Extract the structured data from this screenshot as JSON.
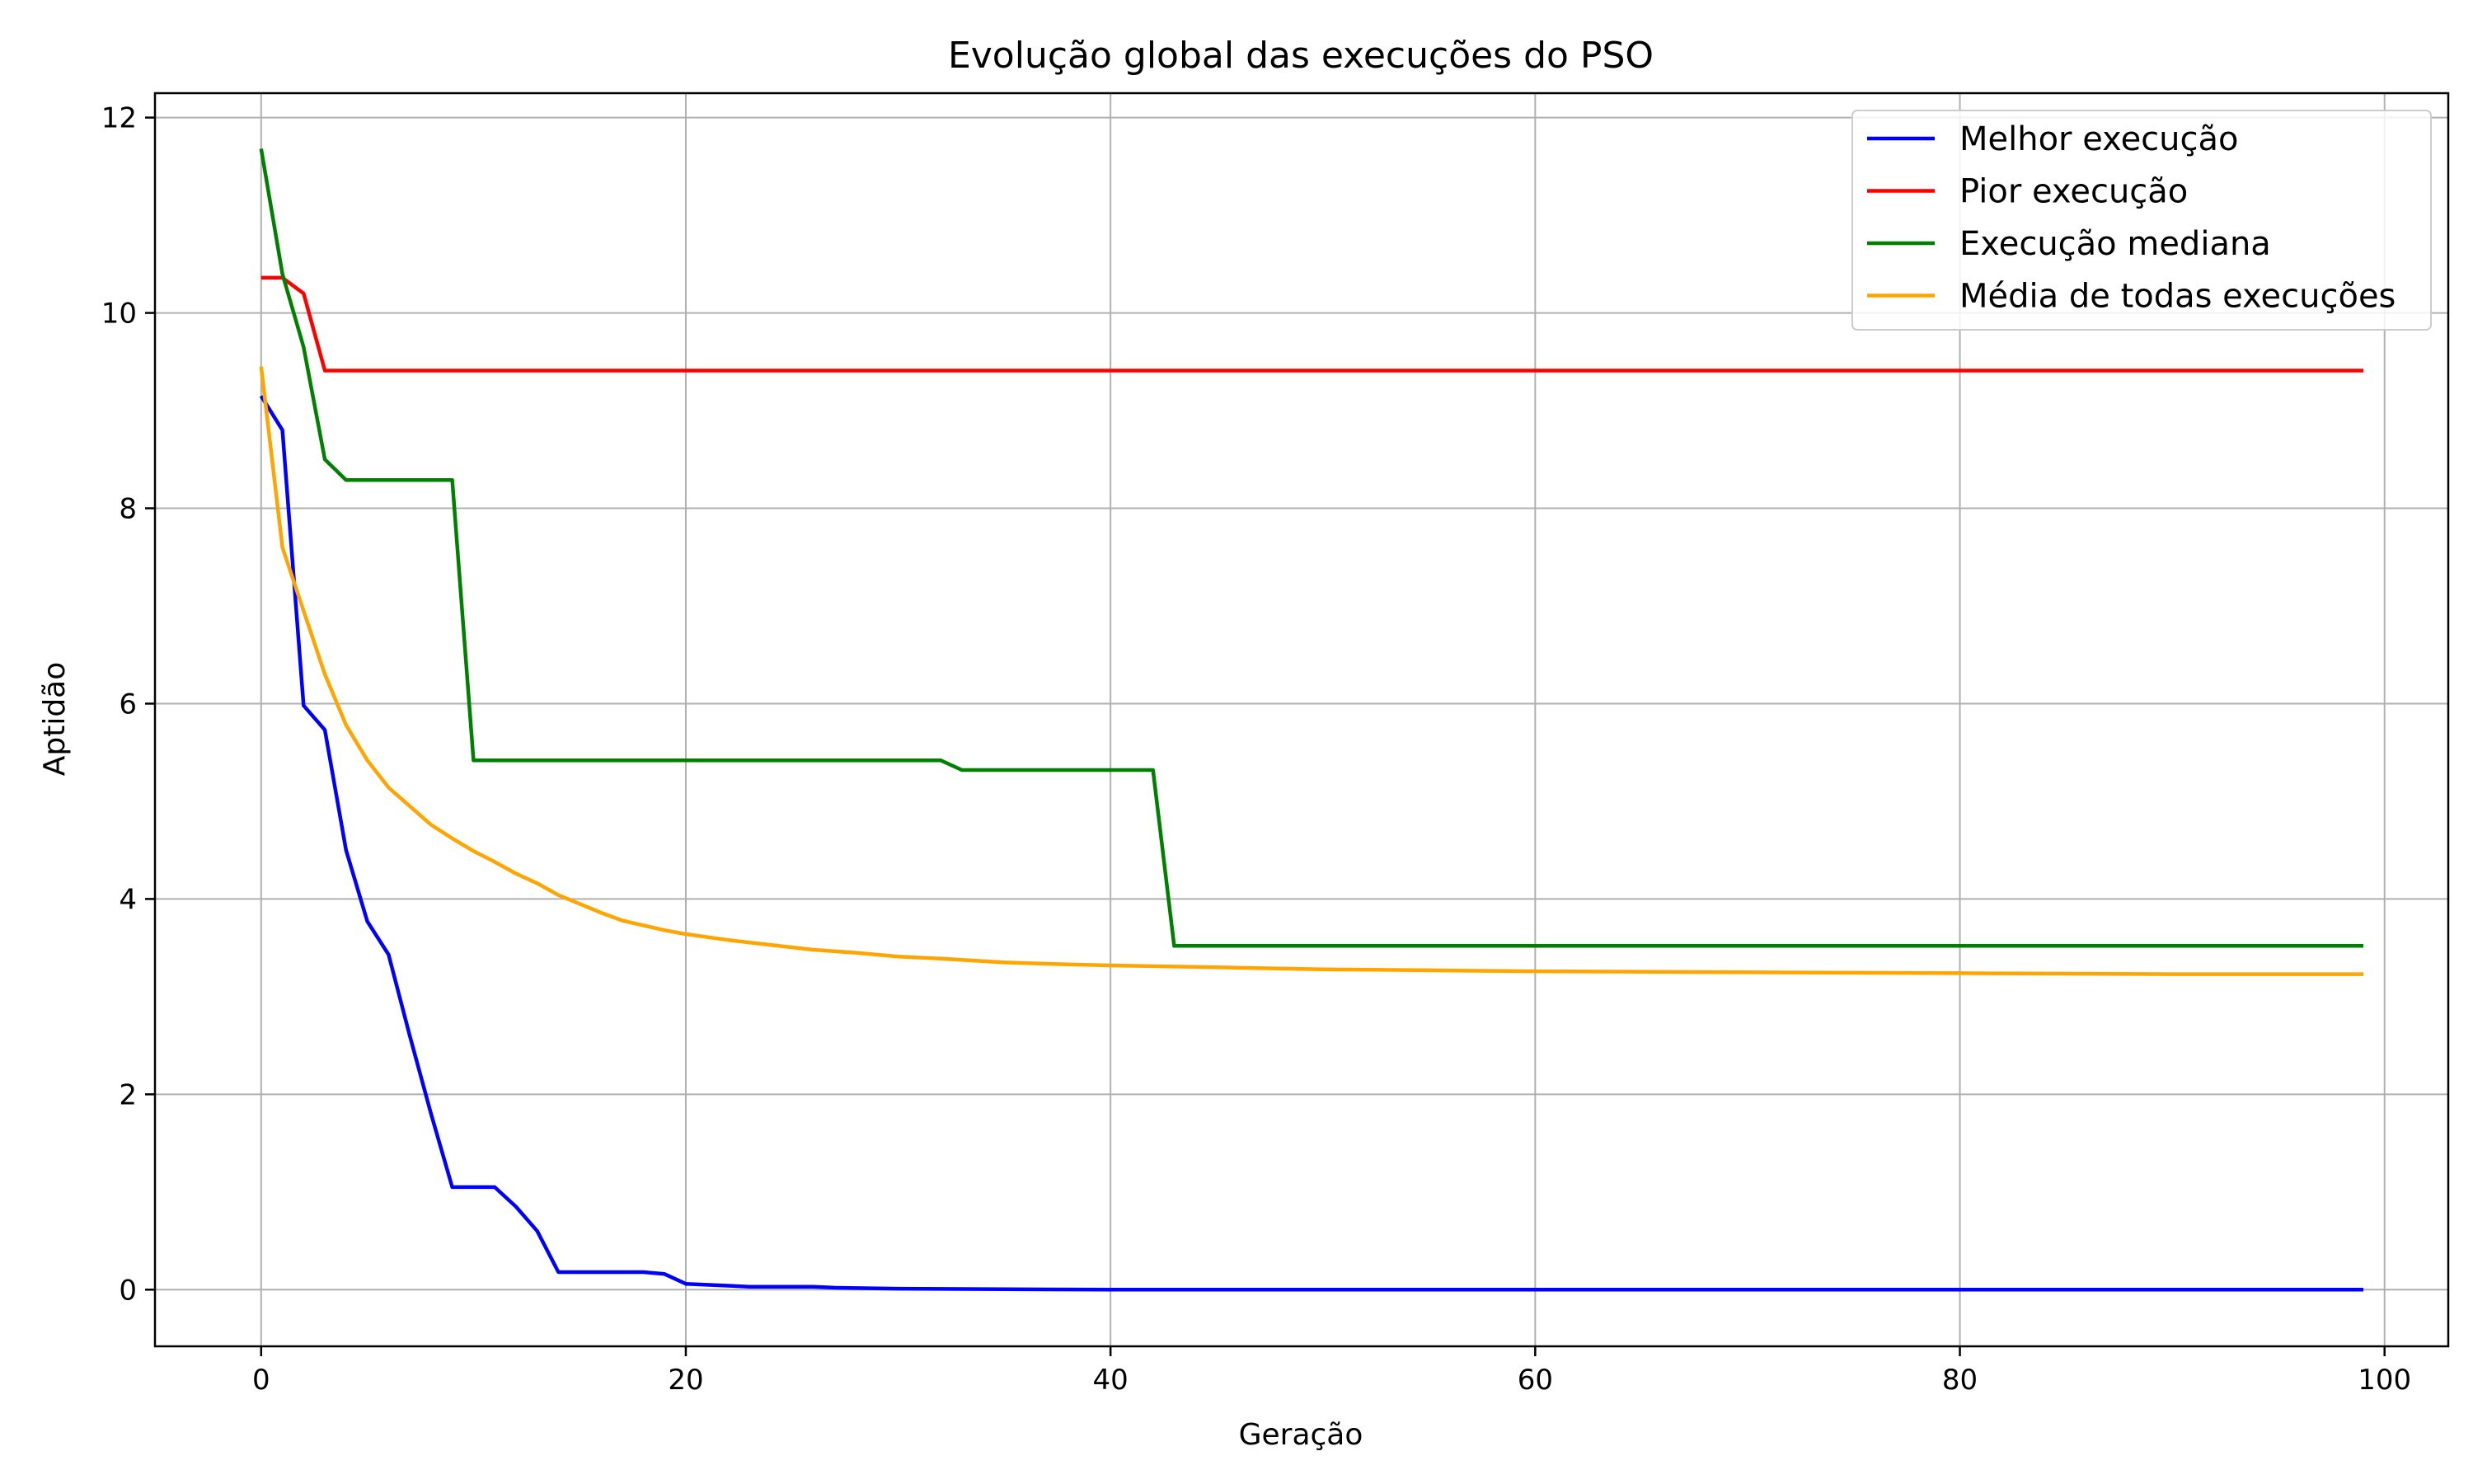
{
  "chart_data": {
    "type": "line",
    "title": "Evolução global das execuções do PSO",
    "xlabel": "Geração",
    "ylabel": "Aptidão",
    "xlim": [
      -5,
      103
    ],
    "ylim": [
      -0.58,
      12.25
    ],
    "xticks": [
      0,
      20,
      40,
      60,
      80,
      100
    ],
    "yticks": [
      0,
      2,
      4,
      6,
      8,
      10,
      12
    ],
    "grid": true,
    "legend_position": "top-right",
    "series": [
      {
        "name": "Melhor execução",
        "color": "#0000ff",
        "points": [
          [
            0,
            9.15
          ],
          [
            1,
            8.8
          ],
          [
            2,
            5.98
          ],
          [
            3,
            5.73
          ],
          [
            4,
            4.5
          ],
          [
            5,
            3.77
          ],
          [
            6,
            3.43
          ],
          [
            7,
            2.6
          ],
          [
            8,
            1.8
          ],
          [
            9,
            1.05
          ],
          [
            10,
            1.05
          ],
          [
            11,
            1.05
          ],
          [
            12,
            0.85
          ],
          [
            13,
            0.6
          ],
          [
            14,
            0.18
          ],
          [
            15,
            0.18
          ],
          [
            16,
            0.18
          ],
          [
            17,
            0.18
          ],
          [
            18,
            0.18
          ],
          [
            19,
            0.16
          ],
          [
            20,
            0.06
          ],
          [
            21,
            0.05
          ],
          [
            22,
            0.04
          ],
          [
            23,
            0.03
          ],
          [
            24,
            0.03
          ],
          [
            26,
            0.03
          ],
          [
            27,
            0.02
          ],
          [
            30,
            0.01
          ],
          [
            40,
            0.0
          ],
          [
            99,
            0.0
          ]
        ]
      },
      {
        "name": "Pior execução",
        "color": "#ff0000",
        "points": [
          [
            0,
            10.36
          ],
          [
            1,
            10.36
          ],
          [
            2,
            10.2
          ],
          [
            3,
            9.41
          ],
          [
            99,
            9.41
          ]
        ]
      },
      {
        "name": "Execução mediana",
        "color": "#008000",
        "points": [
          [
            0,
            11.68
          ],
          [
            1,
            10.4
          ],
          [
            2,
            9.65
          ],
          [
            3,
            8.5
          ],
          [
            4,
            8.29
          ],
          [
            9,
            8.29
          ],
          [
            10,
            5.42
          ],
          [
            32,
            5.42
          ],
          [
            33,
            5.32
          ],
          [
            42,
            5.32
          ],
          [
            43,
            3.52
          ],
          [
            99,
            3.52
          ]
        ]
      },
      {
        "name": "Média de todas execuções",
        "color": "#ffa500",
        "points": [
          [
            0,
            9.45
          ],
          [
            1,
            7.6
          ],
          [
            2,
            6.95
          ],
          [
            3,
            6.3
          ],
          [
            4,
            5.78
          ],
          [
            5,
            5.42
          ],
          [
            6,
            5.14
          ],
          [
            7,
            4.95
          ],
          [
            8,
            4.76
          ],
          [
            9,
            4.62
          ],
          [
            10,
            4.49
          ],
          [
            11,
            4.38
          ],
          [
            12,
            4.26
          ],
          [
            13,
            4.16
          ],
          [
            14,
            4.04
          ],
          [
            15,
            3.95
          ],
          [
            16,
            3.86
          ],
          [
            17,
            3.78
          ],
          [
            18,
            3.73
          ],
          [
            19,
            3.68
          ],
          [
            20,
            3.64
          ],
          [
            22,
            3.58
          ],
          [
            24,
            3.53
          ],
          [
            26,
            3.48
          ],
          [
            28,
            3.45
          ],
          [
            30,
            3.41
          ],
          [
            32,
            3.39
          ],
          [
            35,
            3.35
          ],
          [
            38,
            3.33
          ],
          [
            40,
            3.32
          ],
          [
            45,
            3.3
          ],
          [
            50,
            3.28
          ],
          [
            55,
            3.27
          ],
          [
            60,
            3.26
          ],
          [
            70,
            3.25
          ],
          [
            80,
            3.24
          ],
          [
            90,
            3.23
          ],
          [
            99,
            3.23
          ]
        ]
      }
    ]
  }
}
